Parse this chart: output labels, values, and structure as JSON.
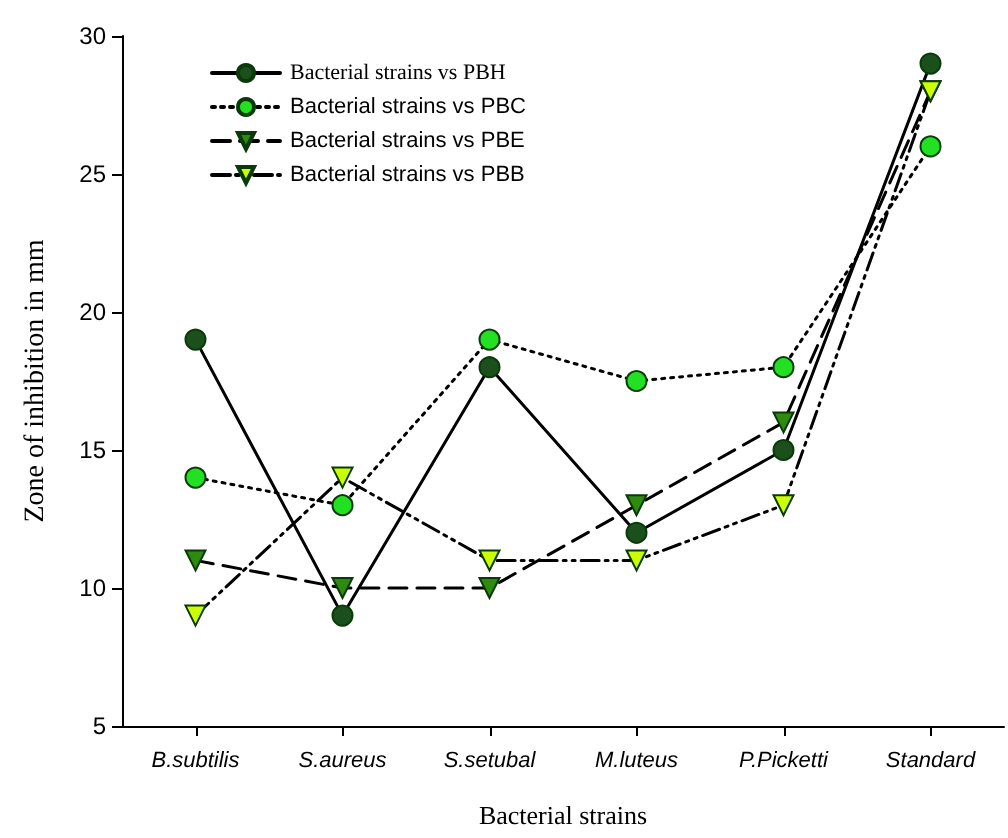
{
  "chart_data": {
    "type": "line",
    "xlabel": "Bacterial strains",
    "ylabel": "Zone of inhibition in mm",
    "categories": [
      "B.subtilis",
      "S.aureus",
      "S.setubal",
      "M.luteus",
      "P.Picketti",
      "Standard"
    ],
    "series": [
      {
        "name": "Bacterial strains vs PBH",
        "color": "#1b4f1b",
        "marker": "circle",
        "line_style": "solid",
        "values": [
          19,
          9,
          18,
          12,
          15,
          29
        ]
      },
      {
        "name": "Bacterial strains vs PBC",
        "color": "#22e022",
        "marker": "circle",
        "line_style": "dotted",
        "values": [
          14,
          13,
          19,
          17.5,
          18,
          26
        ]
      },
      {
        "name": "Bacterial strains vs PBE",
        "color": "#2e8b0e",
        "marker": "triangle",
        "line_style": "dashed",
        "values": [
          11,
          10,
          10,
          13,
          16,
          28
        ]
      },
      {
        "name": "Bacterial strains vs PBB",
        "color": "#ccff00",
        "marker": "triangle",
        "line_style": "dashdot",
        "values": [
          9,
          14,
          11,
          11,
          13,
          28
        ]
      }
    ],
    "ylim": [
      5,
      30
    ],
    "yticks": [
      5,
      10,
      15,
      20,
      25,
      30
    ],
    "grid": false,
    "legend": "top left"
  }
}
